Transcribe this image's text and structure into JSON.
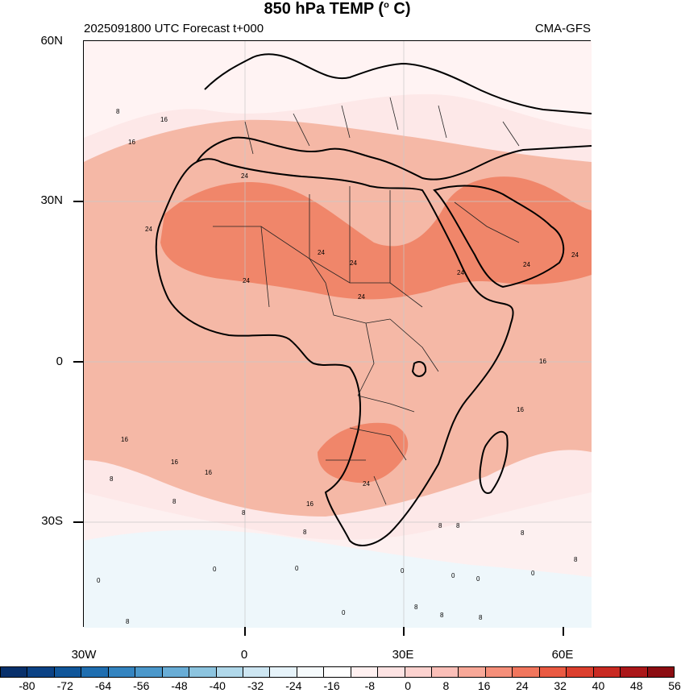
{
  "header": {
    "title_main": "850 hPa TEMP (",
    "title_degree": "o",
    "title_unit": " C)",
    "run_info": "2025091800 UTC Forecast t+000",
    "model": "CMA-GFS"
  },
  "axes": {
    "lat_labels": [
      "60N",
      "30N",
      "0",
      "30S"
    ],
    "lon_labels": [
      "30W",
      "0",
      "30E",
      "60E"
    ]
  },
  "contour_labels": [
    "0",
    "8",
    "16",
    "24"
  ],
  "colorbar": {
    "labels": [
      "-80",
      "-72",
      "-64",
      "-56",
      "-48",
      "-40",
      "-32",
      "-24",
      "-16",
      "-8",
      "0",
      "8",
      "16",
      "24",
      "32",
      "40",
      "48",
      "56"
    ],
    "colors": [
      "#08306b",
      "#0b4285",
      "#10569a",
      "#1f6eb0",
      "#3484c0",
      "#4b98cb",
      "#69add6",
      "#8cc4df",
      "#b0d8ea",
      "#cde6f2",
      "#e6f3fa",
      "#f6fbfd",
      "#ffffff",
      "#fff0f0",
      "#fde3e3",
      "#fcd2cf",
      "#fbbfb8",
      "#f8a898",
      "#f58f7a",
      "#f1765d",
      "#ea5a42",
      "#dc3f2e",
      "#c92a22",
      "#ab1719",
      "#8c0d12"
    ]
  },
  "colors": {
    "ocean_base": "#fde8e8",
    "warm_16": "#fbcfc5",
    "warm_24": "#f39a80",
    "hot_32": "#ef8566",
    "cool_8": "#fff5f5",
    "cold_0": "#e9f6fb",
    "border": "#000000"
  }
}
